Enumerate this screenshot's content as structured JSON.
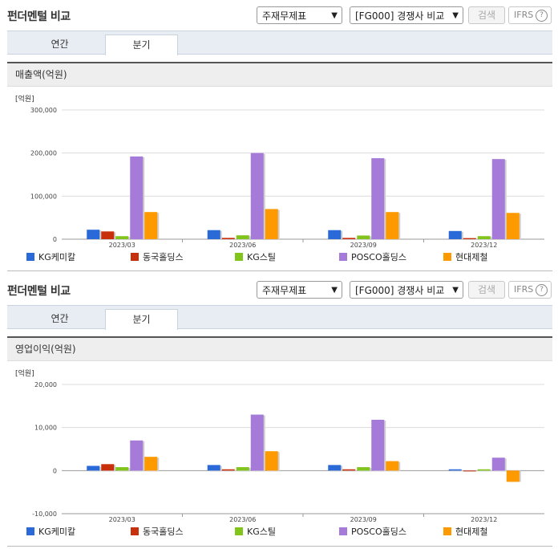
{
  "sections": [
    {
      "title": "펀더멘털 비교",
      "select1": "주재무제표",
      "select2": "[FG000] 경쟁사 비교",
      "search_label": "검색",
      "ifrs_label": "IFRS",
      "help_icon": "?",
      "tabs": [
        {
          "label": "연간"
        },
        {
          "label": "분기"
        }
      ],
      "active_tab": 1,
      "chart_title": "매출액(억원)"
    },
    {
      "title": "펀더멘털 비교",
      "select1": "주재무제표",
      "select2": "[FG000] 경쟁사 비교",
      "search_label": "검색",
      "ifrs_label": "IFRS",
      "help_icon": "?",
      "tabs": [
        {
          "label": "연간"
        },
        {
          "label": "분기"
        }
      ],
      "active_tab": 1,
      "chart_title": "영업이익(억원)"
    }
  ],
  "colors": {
    "KG케미칼": "#2a6ad8",
    "동국홀딩스": "#c8300c",
    "KG스틸": "#80c41c",
    "POSCO홀딩스": "#a57ad8",
    "현대제철": "#ff9900"
  },
  "chart_data": [
    {
      "type": "bar",
      "title": "매출액(억원)",
      "unit_label": "[억원]",
      "categories": [
        "2023/03",
        "2023/06",
        "2023/09",
        "2023/12"
      ],
      "ylim": [
        0,
        300000
      ],
      "yticks": [
        0,
        100000,
        200000,
        300000
      ],
      "ytick_labels": [
        "0",
        "100,000",
        "200,000",
        "300,000"
      ],
      "grid": true,
      "legend": "bottom",
      "series": [
        {
          "name": "KG케미칼",
          "values": [
            22000,
            21000,
            21000,
            19000
          ]
        },
        {
          "name": "동국홀딩스",
          "values": [
            18000,
            3000,
            3000,
            2500
          ]
        },
        {
          "name": "KG스틸",
          "values": [
            7000,
            9000,
            8500,
            7000
          ]
        },
        {
          "name": "POSCO홀딩스",
          "values": [
            192000,
            200000,
            188000,
            186000
          ]
        },
        {
          "name": "현대제철",
          "values": [
            63000,
            70000,
            63000,
            61000
          ]
        }
      ]
    },
    {
      "type": "bar",
      "title": "영업이익(억원)",
      "unit_label": "[억원]",
      "categories": [
        "2023/03",
        "2023/06",
        "2023/09",
        "2023/12"
      ],
      "ylim": [
        -10000,
        20000
      ],
      "yticks": [
        -10000,
        0,
        10000,
        20000
      ],
      "ytick_labels": [
        "-10,000",
        "0",
        "10,000",
        "20,000"
      ],
      "grid": true,
      "legend": "bottom",
      "series": [
        {
          "name": "KG케미칼",
          "values": [
            1100,
            1300,
            1300,
            300
          ]
        },
        {
          "name": "동국홀딩스",
          "values": [
            1500,
            300,
            300,
            -50
          ]
        },
        {
          "name": "KG스틸",
          "values": [
            800,
            800,
            800,
            300
          ]
        },
        {
          "name": "POSCO홀딩스",
          "values": [
            7000,
            13000,
            11800,
            3000
          ]
        },
        {
          "name": "현대제철",
          "values": [
            3200,
            4500,
            2200,
            -2600
          ]
        }
      ]
    }
  ]
}
